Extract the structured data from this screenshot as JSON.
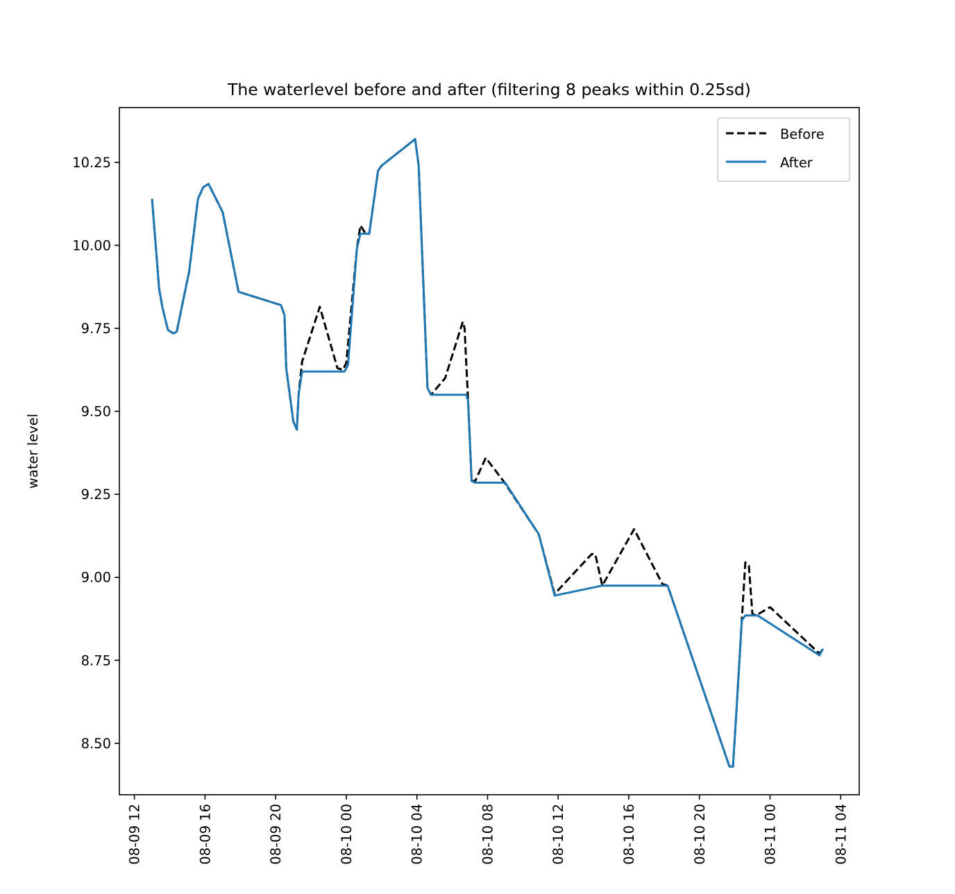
{
  "chart_data": {
    "type": "line",
    "title": "The waterlevel before and after (filtering 8 peaks within 0.25sd)",
    "xlabel": "",
    "ylabel": "water level",
    "x_tick_labels": [
      "08-09 12",
      "08-09 16",
      "08-09 20",
      "08-10 00",
      "08-10 04",
      "08-10 08",
      "08-10 12",
      "08-10 16",
      "08-10 20",
      "08-11 00",
      "08-11 04"
    ],
    "x_ticks_hours": [
      0,
      4,
      8,
      12,
      16,
      20,
      24,
      28,
      32,
      36,
      40
    ],
    "xlim_hours": [
      -0.85,
      41.05
    ],
    "y_ticks": [
      8.5,
      8.75,
      9.0,
      9.25,
      9.5,
      9.75,
      10.0,
      10.25
    ],
    "y_tick_labels": [
      "8.50",
      "8.75",
      "9.00",
      "9.25",
      "9.50",
      "9.75",
      "10.00",
      "10.25"
    ],
    "ylim": [
      8.345,
      10.415
    ],
    "grid": false,
    "legend_position": "top-right",
    "series": [
      {
        "name": "Before",
        "color": "#000000",
        "style": "dashed",
        "points": [
          [
            1.0,
            10.14
          ],
          [
            1.4,
            9.87
          ],
          [
            1.6,
            9.81
          ],
          [
            1.9,
            9.745
          ],
          [
            2.2,
            9.735
          ],
          [
            2.4,
            9.74
          ],
          [
            2.9,
            9.87
          ],
          [
            3.1,
            9.92
          ],
          [
            3.6,
            10.14
          ],
          [
            3.9,
            10.175
          ],
          [
            4.2,
            10.185
          ],
          [
            5.0,
            10.1
          ],
          [
            5.9,
            9.86
          ],
          [
            8.3,
            9.82
          ],
          [
            8.5,
            9.79
          ],
          [
            8.6,
            9.63
          ],
          [
            9.0,
            9.47
          ],
          [
            9.2,
            9.445
          ],
          [
            9.3,
            9.55
          ],
          [
            9.5,
            9.65
          ],
          [
            10.5,
            9.815
          ],
          [
            11.5,
            9.63
          ],
          [
            11.8,
            9.625
          ],
          [
            12.0,
            9.645
          ],
          [
            12.6,
            9.99
          ],
          [
            12.8,
            10.06
          ],
          [
            13.1,
            10.035
          ],
          [
            13.3,
            10.035
          ],
          [
            13.8,
            10.225
          ],
          [
            14.0,
            10.24
          ],
          [
            15.9,
            10.32
          ],
          [
            16.1,
            10.24
          ],
          [
            16.6,
            9.57
          ],
          [
            16.8,
            9.55
          ],
          [
            17.6,
            9.6
          ],
          [
            18.6,
            9.77
          ],
          [
            18.7,
            9.75
          ],
          [
            18.9,
            9.53
          ],
          [
            19.1,
            9.29
          ],
          [
            19.3,
            9.29
          ],
          [
            19.9,
            9.36
          ],
          [
            20.9,
            9.29
          ],
          [
            22.9,
            9.13
          ],
          [
            23.8,
            8.95
          ],
          [
            25.9,
            9.07
          ],
          [
            26.1,
            9.07
          ],
          [
            26.5,
            8.975
          ],
          [
            28.3,
            9.145
          ],
          [
            29.9,
            8.98
          ],
          [
            30.2,
            8.975
          ],
          [
            33.7,
            8.43
          ],
          [
            33.9,
            8.43
          ],
          [
            34.1,
            8.6
          ],
          [
            34.4,
            8.87
          ],
          [
            34.6,
            9.045
          ],
          [
            34.8,
            9.035
          ],
          [
            35.0,
            8.89
          ],
          [
            35.2,
            8.885
          ],
          [
            36.0,
            8.91
          ],
          [
            38.8,
            8.77
          ],
          [
            39.0,
            8.785
          ]
        ]
      },
      {
        "name": "After",
        "color": "#1f77b4",
        "style": "solid",
        "points": [
          [
            1.0,
            10.14
          ],
          [
            1.4,
            9.87
          ],
          [
            1.6,
            9.81
          ],
          [
            1.9,
            9.745
          ],
          [
            2.2,
            9.735
          ],
          [
            2.4,
            9.74
          ],
          [
            2.9,
            9.87
          ],
          [
            3.1,
            9.92
          ],
          [
            3.6,
            10.14
          ],
          [
            3.9,
            10.175
          ],
          [
            4.2,
            10.185
          ],
          [
            5.0,
            10.1
          ],
          [
            5.9,
            9.86
          ],
          [
            8.3,
            9.82
          ],
          [
            8.5,
            9.79
          ],
          [
            8.6,
            9.63
          ],
          [
            9.0,
            9.47
          ],
          [
            9.2,
            9.445
          ],
          [
            9.3,
            9.55
          ],
          [
            9.5,
            9.62
          ],
          [
            11.9,
            9.62
          ],
          [
            12.1,
            9.64
          ],
          [
            12.6,
            9.99
          ],
          [
            12.8,
            10.035
          ],
          [
            13.3,
            10.035
          ],
          [
            13.8,
            10.225
          ],
          [
            14.0,
            10.24
          ],
          [
            15.9,
            10.32
          ],
          [
            16.1,
            10.24
          ],
          [
            16.6,
            9.57
          ],
          [
            16.8,
            9.55
          ],
          [
            18.8,
            9.55
          ],
          [
            18.9,
            9.53
          ],
          [
            19.1,
            9.29
          ],
          [
            19.3,
            9.285
          ],
          [
            21.0,
            9.285
          ],
          [
            22.9,
            9.13
          ],
          [
            23.8,
            8.945
          ],
          [
            26.5,
            8.975
          ],
          [
            30.2,
            8.975
          ],
          [
            33.7,
            8.43
          ],
          [
            33.9,
            8.43
          ],
          [
            34.1,
            8.6
          ],
          [
            34.4,
            8.87
          ],
          [
            34.6,
            8.885
          ],
          [
            35.3,
            8.885
          ],
          [
            38.8,
            8.765
          ],
          [
            39.0,
            8.785
          ]
        ]
      }
    ]
  }
}
